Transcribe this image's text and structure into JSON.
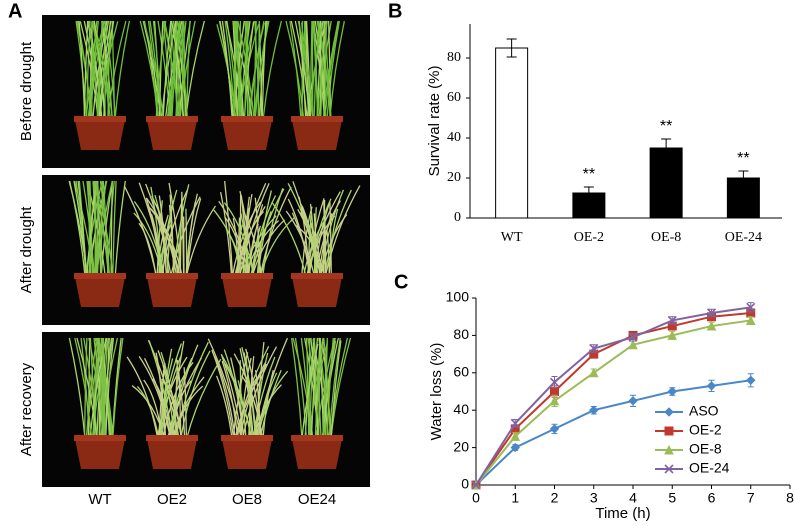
{
  "panel_a": {
    "label": "A",
    "rows": [
      "Before drought",
      "After drought",
      "After recovery"
    ],
    "columns": [
      "WT",
      "OE2",
      "OE8",
      "OE24"
    ]
  },
  "chart_data": [
    {
      "type": "bar",
      "label": "B",
      "ylabel": "Survival rate (%)",
      "categories": [
        "WT",
        "OE-2",
        "OE-8",
        "OE-24"
      ],
      "values": [
        85,
        12.5,
        35,
        20
      ],
      "errors": [
        4.5,
        3,
        4.5,
        3.5
      ],
      "significance": [
        null,
        "**",
        "**",
        "**"
      ],
      "colors": [
        "#ffffff",
        "#000000",
        "#000000",
        "#000000"
      ],
      "edgecolor": "#000000",
      "ylim": [
        0,
        97
      ],
      "yticks": [
        0,
        20,
        40,
        60,
        80
      ]
    },
    {
      "type": "line",
      "label": "C",
      "xlabel": "Time (h)",
      "ylabel": "Water loss (%)",
      "x": [
        0,
        1,
        2,
        3,
        4,
        5,
        6,
        7
      ],
      "series": [
        {
          "name": "ASO",
          "color": "#4a86c8",
          "marker": "diamond",
          "values": [
            0,
            20,
            30,
            40,
            45,
            50,
            53,
            56
          ],
          "errors": [
            0,
            1.5,
            2.5,
            2,
            3,
            2,
            3,
            3.5
          ]
        },
        {
          "name": "OE-2",
          "color": "#c0392b",
          "marker": "square",
          "values": [
            0,
            30,
            50,
            70,
            80,
            85,
            90,
            92
          ],
          "errors": [
            0,
            2,
            3,
            2,
            2,
            2,
            2,
            2
          ]
        },
        {
          "name": "OE-8",
          "color": "#9bbb59",
          "marker": "triangle",
          "values": [
            0,
            26,
            45,
            60,
            75,
            80,
            85,
            88
          ],
          "errors": [
            0,
            2,
            3,
            2,
            2,
            2,
            2,
            2
          ]
        },
        {
          "name": "OE-24",
          "color": "#8064a2",
          "marker": "x",
          "values": [
            0,
            33,
            55,
            73,
            79,
            88,
            92,
            95
          ],
          "errors": [
            0,
            2,
            3,
            2,
            2,
            2,
            2,
            2.5
          ]
        }
      ],
      "xlim": [
        0,
        8
      ],
      "xticks": [
        0,
        1,
        2,
        3,
        4,
        5,
        6,
        7,
        8
      ],
      "ylim": [
        0,
        100
      ],
      "yticks": [
        0,
        20,
        40,
        60,
        80,
        100
      ],
      "legend": "lower right"
    }
  ]
}
